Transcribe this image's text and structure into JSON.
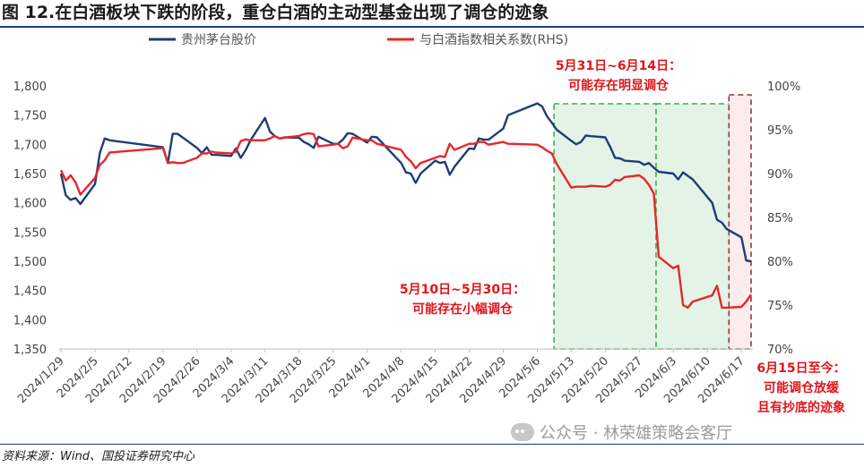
{
  "title": "图 12.在白酒板块下跌的阶段，重仓白酒的主动型基金出现了调仓的迹象",
  "source": "资料来源：Wind、国投证券研究中心",
  "watermark": "公众号 · 林荣雄策略会客厅",
  "watermark_icon": "wechat-icon",
  "colors": {
    "navy": "#1f3c78",
    "red": "#e8262a",
    "green_fill": "#e3f4e7",
    "green_border": "#3faa4e",
    "pink_fill": "#fbeded",
    "pink_border": "#8b3a3a"
  },
  "chart_data": {
    "type": "line",
    "legend": [
      "贵州茅台股价",
      "与白酒指数相关系数(RHS)"
    ],
    "legend_position": "top",
    "grid": false,
    "x": [
      "2024/1/29",
      "2024/1/30",
      "2024/1/31",
      "2024/2/1",
      "2024/2/2",
      "2024/2/5",
      "2024/2/6",
      "2024/2/7",
      "2024/2/8",
      "2024/2/19",
      "2024/2/20",
      "2024/2/21",
      "2024/2/22",
      "2024/2/23",
      "2024/2/26",
      "2024/2/27",
      "2024/2/28",
      "2024/2/29",
      "2024/3/1",
      "2024/3/4",
      "2024/3/5",
      "2024/3/6",
      "2024/3/7",
      "2024/3/8",
      "2024/3/11",
      "2024/3/12",
      "2024/3/13",
      "2024/3/14",
      "2024/3/15",
      "2024/3/18",
      "2024/3/19",
      "2024/3/20",
      "2024/3/21",
      "2024/3/22",
      "2024/3/25",
      "2024/3/26",
      "2024/3/27",
      "2024/3/28",
      "2024/3/29",
      "2024/4/1",
      "2024/4/2",
      "2024/4/3",
      "2024/4/8",
      "2024/4/9",
      "2024/4/10",
      "2024/4/11",
      "2024/4/12",
      "2024/4/15",
      "2024/4/16",
      "2024/4/17",
      "2024/4/18",
      "2024/4/19",
      "2024/4/22",
      "2024/4/23",
      "2024/4/24",
      "2024/4/25",
      "2024/4/26",
      "2024/4/29",
      "2024/4/30",
      "2024/5/6",
      "2024/5/7",
      "2024/5/8",
      "2024/5/9",
      "2024/5/10",
      "2024/5/13",
      "2024/5/14",
      "2024/5/15",
      "2024/5/16",
      "2024/5/17",
      "2024/5/20",
      "2024/5/21",
      "2024/5/22",
      "2024/5/23",
      "2024/5/24",
      "2024/5/27",
      "2024/5/28",
      "2024/5/29",
      "2024/5/30",
      "2024/5/31",
      "2024/6/3",
      "2024/6/4",
      "2024/6/5",
      "2024/6/6",
      "2024/6/7",
      "2024/6/11",
      "2024/6/12",
      "2024/6/13",
      "2024/6/14",
      "2024/6/17",
      "2024/6/18",
      "2024/6/19"
    ],
    "x_ticks": [
      "2024/1/29",
      "2024/2/5",
      "2024/2/12",
      "2024/2/19",
      "2024/2/26",
      "2024/3/4",
      "2024/3/11",
      "2024/3/18",
      "2024/3/25",
      "2024/4/1",
      "2024/4/8",
      "2024/4/15",
      "2024/4/22",
      "2024/4/29",
      "2024/5/6",
      "2024/5/13",
      "2024/5/20",
      "2024/5/27",
      "2024/6/3",
      "2024/6/10",
      "2024/6/17"
    ],
    "y_left": {
      "min": 1350,
      "max": 1800,
      "ticks": [
        "1,350",
        "1,400",
        "1,450",
        "1,500",
        "1,550",
        "1,600",
        "1,650",
        "1,700",
        "1,750",
        "1,800"
      ]
    },
    "y_right": {
      "min": 70,
      "max": 100,
      "ticks": [
        "70%",
        "75%",
        "80%",
        "85%",
        "90%",
        "95%",
        "100%"
      ]
    },
    "series": [
      {
        "name": "贵州茅台股价",
        "axis": "left",
        "color": "#1f3c78",
        "values": [
          1650,
          1613,
          1605,
          1608,
          1598,
          1632,
          1685,
          1710,
          1707,
          1695,
          1668,
          1718,
          1718,
          1712,
          1694,
          1685,
          1695,
          1682,
          1682,
          1680,
          1693,
          1677,
          1690,
          1707,
          1745,
          1722,
          1714,
          1710,
          1712,
          1711,
          1704,
          1700,
          1694,
          1713,
          1701,
          1701,
          1708,
          1719,
          1718,
          1703,
          1713,
          1712,
          1668,
          1652,
          1650,
          1634,
          1650,
          1672,
          1668,
          1670,
          1648,
          1662,
          1693,
          1692,
          1710,
          1708,
          1708,
          1727,
          1750,
          1770,
          1765,
          1748,
          1737,
          1725,
          1706,
          1700,
          1704,
          1715,
          1714,
          1712,
          1696,
          1677,
          1676,
          1672,
          1670,
          1665,
          1668,
          1660,
          1653,
          1650,
          1640,
          1652,
          1646,
          1640,
          1600,
          1571,
          1566,
          1555,
          1541,
          1501,
          1500
        ]
      },
      {
        "name": "与白酒指数相关系数(RHS)",
        "axis": "right",
        "color": "#e8262a",
        "values": [
          90.4,
          89.2,
          89.8,
          89.0,
          87.6,
          89.5,
          91.0,
          91.5,
          92.4,
          92.9,
          91.2,
          91.3,
          91.2,
          91.2,
          91.8,
          92.3,
          92.3,
          92.5,
          92.4,
          92.3,
          92.5,
          93.7,
          93.9,
          93.8,
          93.8,
          94.0,
          94.3,
          94.0,
          94.1,
          94.3,
          94.5,
          94.6,
          94.5,
          93.1,
          93.3,
          93.4,
          92.9,
          93.1,
          94.1,
          93.8,
          93.8,
          93.4,
          92.7,
          91.9,
          91.4,
          90.6,
          91.2,
          91.8,
          92.0,
          91.9,
          93.4,
          92.7,
          93.4,
          93.4,
          93.6,
          93.6,
          93.3,
          93.6,
          93.4,
          93.3,
          93.0,
          92.6,
          92.3,
          91.1,
          88.4,
          88.5,
          88.5,
          88.5,
          88.6,
          88.5,
          88.7,
          89.3,
          89.2,
          89.6,
          89.8,
          89.4,
          88.7,
          87.7,
          80.5,
          79.2,
          79.5,
          75.0,
          74.7,
          75.4,
          76.1,
          77.2,
          74.7,
          74.7,
          74.8,
          75.4,
          76.2
        ]
      }
    ],
    "annotations": [
      {
        "label": "5月10日~5月30日：",
        "label2": "可能存在小幅调仓",
        "range": [
          "2024/5/10",
          "2024/5/30"
        ]
      },
      {
        "label": "5月31日~6月14日：",
        "label2": "可能存在明显调仓",
        "range": [
          "2024/5/31",
          "2024/6/14"
        ]
      },
      {
        "label": "6月15日至今：",
        "label2": "可能调仓放缓",
        "label3": "且有抄底的迹象",
        "range": [
          "2024/6/15",
          "2024/6/19"
        ]
      }
    ]
  }
}
